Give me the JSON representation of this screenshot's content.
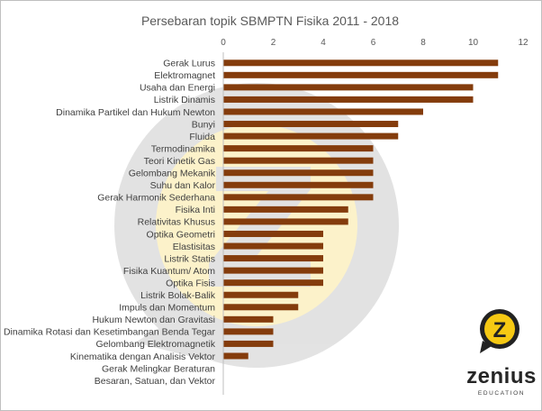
{
  "chart_data": {
    "type": "bar",
    "orientation": "horizontal",
    "title": "Persebaran topik SBMPTN Fisika 2011 - 2018",
    "xlabel": "",
    "ylabel": "",
    "xlim": [
      0,
      12
    ],
    "xticks": [
      0,
      2,
      4,
      6,
      8,
      10,
      12
    ],
    "tick_labels": [
      "0",
      "2",
      "4",
      "6",
      "8",
      "10",
      "12"
    ],
    "bar_color": "#843c0c",
    "categories": [
      "Gerak Lurus",
      "Elektromagnet",
      "Usaha dan Energi",
      "Listrik Dinamis",
      "Dinamika Partikel dan Hukum Newton",
      "Bunyi",
      "Fluida",
      "Termodinamika",
      "Teori Kinetik Gas",
      "Gelombang Mekanik",
      "Suhu dan Kalor",
      "Gerak Harmonik Sederhana",
      "Fisika Inti",
      "Relativitas Khusus",
      "Optika Geometri",
      "Elastisitas",
      "Listrik Statis",
      "Fisika Kuantum/ Atom",
      "Optika Fisis",
      "Listrik Bolak-Balik",
      "Impuls dan Momentum",
      "Hukum Newton dan Gravitasi",
      "Dinamika Rotasi dan Kesetimbangan Benda Tegar",
      "Gelombang Elektromagnetik",
      "Kinematika dengan Analisis Vektor",
      "Gerak Melingkar Beraturan",
      "Besaran, Satuan, dan Vektor"
    ],
    "values": [
      11,
      11,
      10,
      10,
      8,
      7,
      7,
      6,
      6,
      6,
      6,
      6,
      5,
      5,
      4,
      4,
      4,
      4,
      4,
      3,
      3,
      2,
      2,
      2,
      1,
      0,
      0
    ]
  },
  "logo": {
    "brand": "zenius",
    "tagline": "EDUCATION",
    "mark_letter": "Z",
    "colors": {
      "yellow": "#f6c913",
      "dark": "#222222"
    }
  }
}
